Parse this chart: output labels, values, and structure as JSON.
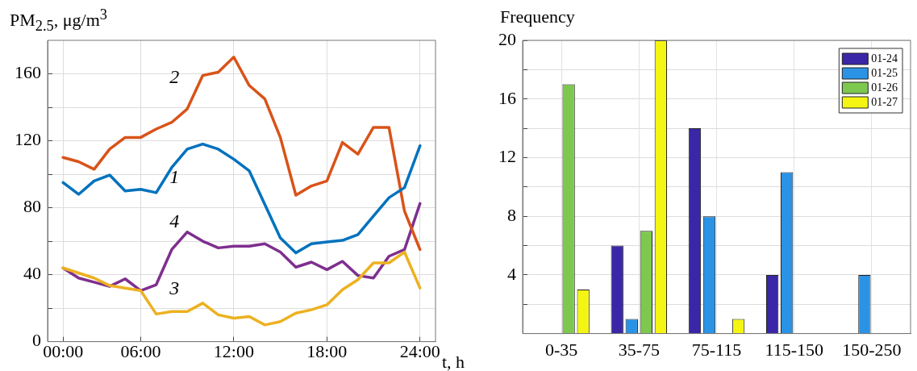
{
  "chart_data": [
    {
      "type": "line",
      "ylabel": "PM$_{2.5}$, μg/m$^{3}$",
      "xlabel": "t, h",
      "x": [
        1,
        2,
        3,
        4,
        5,
        6,
        7,
        8,
        9,
        10,
        11,
        12,
        13,
        14,
        15,
        16,
        17,
        18,
        19,
        20,
        21,
        22,
        23,
        24
      ],
      "xlim": [
        0,
        25
      ],
      "xticks": [
        {
          "value": 1,
          "label": "00:00"
        },
        {
          "value": 6,
          "label": "06:00"
        },
        {
          "value": 12,
          "label": "12:00"
        },
        {
          "value": 18,
          "label": "18:00"
        },
        {
          "value": 24,
          "label": "24:00"
        }
      ],
      "ylim": [
        0,
        180
      ],
      "yticks": [
        0,
        {
          "value": 20,
          "label": null
        },
        40,
        {
          "value": 60,
          "label": null
        },
        80,
        {
          "value": 100,
          "label": null
        },
        120,
        {
          "value": 140,
          "label": null
        },
        160
      ],
      "grid": true,
      "line_style": "solid",
      "marker": "none",
      "series": [
        {
          "name": "1",
          "color": "#0072bd",
          "values": [
            95,
            88,
            96,
            99.5,
            90,
            91,
            89,
            104,
            115,
            118,
            115,
            109,
            102,
            82,
            62,
            53,
            58.5,
            59.5,
            60.5,
            64,
            75,
            86,
            92,
            117
          ]
        },
        {
          "name": "2",
          "color": "#d95319",
          "values": [
            110,
            107.5,
            103,
            115,
            122,
            122,
            127,
            131,
            139,
            159,
            161,
            170,
            153,
            145,
            122,
            87.5,
            93,
            96,
            119,
            112,
            128,
            128,
            78,
            55
          ]
        },
        {
          "name": "3",
          "color": "#edb120",
          "values": [
            44,
            41,
            38,
            33.5,
            32,
            30.5,
            16.5,
            18,
            18,
            23,
            16,
            14,
            15,
            10,
            12,
            17,
            19,
            22,
            31,
            37,
            47,
            47,
            53.5,
            32
          ]
        },
        {
          "name": "4",
          "color": "#7e2f8e",
          "values": [
            44,
            38,
            35.5,
            33,
            37.5,
            30.5,
            34,
            55,
            65.5,
            60,
            56,
            57,
            57,
            58.5,
            53.5,
            44.5,
            47.5,
            43,
            48,
            39.5,
            38,
            51,
            55,
            82.5
          ]
        }
      ]
    },
    {
      "type": "bar",
      "ylabel": "Frequency",
      "categories": [
        "0-35",
        "35-75",
        "75-115",
        "115-150",
        "150-250"
      ],
      "ylim": [
        0,
        20
      ],
      "yticks": [
        {
          "value": 0,
          "label": null
        },
        {
          "value": 2,
          "label": null
        },
        4,
        {
          "value": 6,
          "label": null
        },
        8,
        {
          "value": 10,
          "label": null
        },
        12,
        {
          "value": 14,
          "label": null
        },
        16,
        {
          "value": 18,
          "label": null
        },
        20
      ],
      "grid": true,
      "legend": "top right",
      "series": [
        {
          "name": "01-24",
          "color": "#3a27a8",
          "values": [
            0,
            6,
            14,
            4,
            0
          ]
        },
        {
          "name": "01-25",
          "color": "#2b93e6",
          "values": [
            0,
            1,
            8,
            11,
            4
          ]
        },
        {
          "name": "01-26",
          "color": "#7ec850",
          "values": [
            17,
            7,
            0,
            0,
            0
          ]
        },
        {
          "name": "01-27",
          "color": "#f5f514",
          "values": [
            3,
            20,
            1,
            0,
            0
          ]
        }
      ]
    }
  ]
}
